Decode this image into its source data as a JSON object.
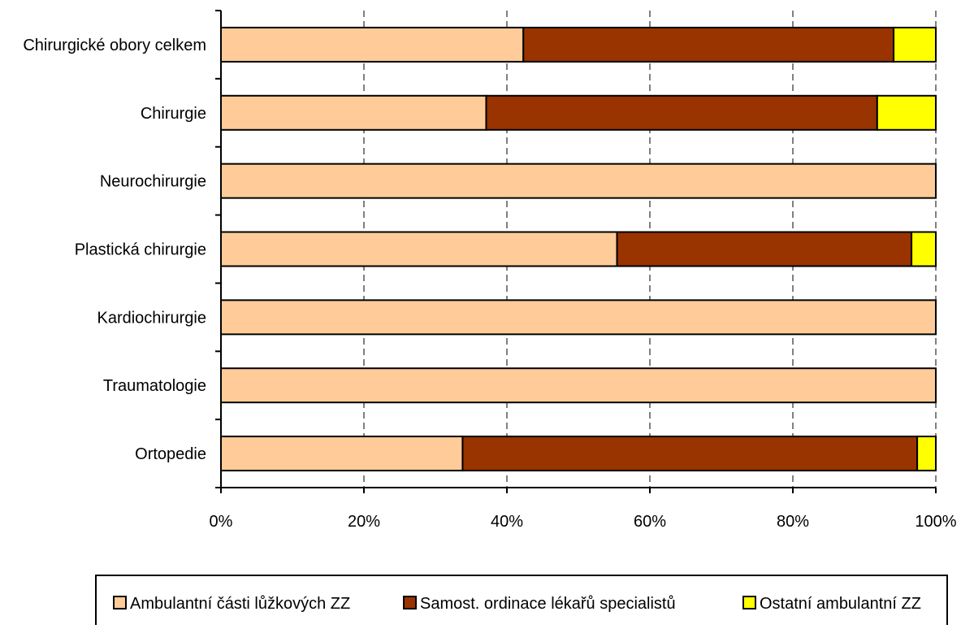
{
  "chart_data": {
    "type": "bar",
    "orientation": "horizontal",
    "stacked": "percent",
    "categories": [
      "Chirurgické obory celkem",
      "Chirurgie",
      "Neurochirurgie",
      "Plastická chirurgie",
      "Kardiochirurgie",
      "Traumatologie",
      "Ortopedie"
    ],
    "series": [
      {
        "name": "Ambulantní části lůžkových ZZ",
        "color": "#FFCC99",
        "values": [
          42.3,
          37.1,
          100,
          55.4,
          100,
          100,
          33.8
        ]
      },
      {
        "name": "Samost. ordinace lékařů specialistů",
        "color": "#993300",
        "values": [
          51.8,
          54.7,
          0,
          41.2,
          0,
          0,
          63.6
        ]
      },
      {
        "name": "Ostatní ambulantní ZZ",
        "color": "#FFFF00",
        "values": [
          5.9,
          8.2,
          0,
          3.4,
          0,
          0,
          2.6
        ]
      }
    ],
    "xlim": [
      0,
      100
    ],
    "x_ticks": [
      "0%",
      "20%",
      "40%",
      "60%",
      "80%",
      "100%"
    ],
    "title": "",
    "xlabel": "",
    "ylabel": "",
    "grid": "vertical dashed",
    "legend_position": "bottom"
  }
}
